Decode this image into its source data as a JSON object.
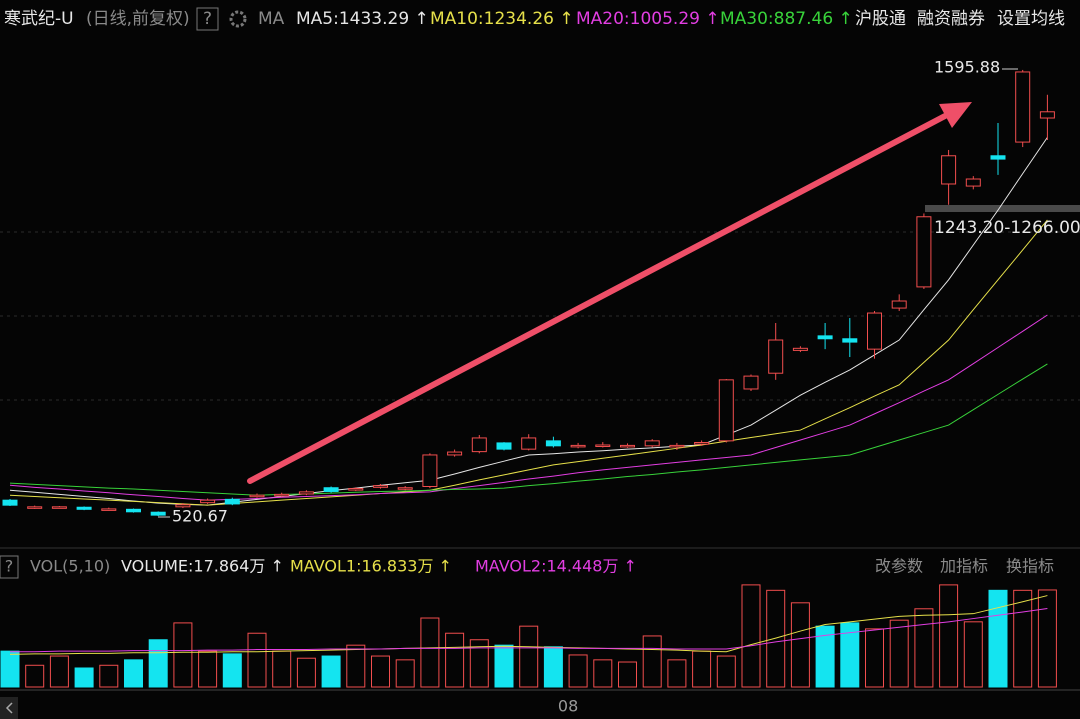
{
  "chart_data": [
    {
      "type": "candlestick",
      "title": "寒武纪-U",
      "subtitle": "(日线,前复权)",
      "help": "?",
      "indicator": "MA",
      "up_color": "#f24e4e",
      "down_color": "#14e4f0",
      "categories": [
        null,
        null,
        null,
        null,
        null,
        null,
        null,
        null,
        null,
        null,
        null,
        null,
        null,
        null,
        null,
        null,
        null,
        null,
        null,
        null,
        null,
        null,
        null,
        "08",
        null,
        null,
        null,
        null,
        null,
        null,
        null,
        null,
        null,
        null,
        null,
        null,
        null,
        null,
        null,
        null,
        null,
        null,
        null
      ],
      "open": [
        559,
        540,
        541,
        542,
        536,
        537,
        530,
        543,
        553,
        561,
        568,
        570,
        574,
        589,
        584,
        590,
        586,
        592,
        668,
        676,
        697,
        682,
        702,
        688,
        689,
        688,
        690,
        688,
        694,
        702,
        827,
        865,
        920,
        955,
        948,
        923,
        1022,
        1073,
        1321,
        1316,
        1389,
        1422,
        1480
      ],
      "high": [
        562,
        546,
        545,
        544,
        541,
        539,
        532,
        552,
        563,
        565,
        575,
        577,
        583,
        592,
        590,
        598,
        593,
        672,
        681,
        716,
        699,
        718,
        712,
        697,
        699,
        696,
        706,
        697,
        703,
        851,
        862,
        986,
        930,
        986,
        998,
        1015,
        1055,
        1250,
        1403,
        1340,
        1468,
        1595.88,
        1536
      ],
      "low": [
        545,
        538,
        539,
        535,
        534,
        529,
        520.67,
        540,
        550,
        547,
        565,
        567,
        571,
        577,
        581,
        587,
        583,
        588,
        664,
        672,
        679,
        679,
        686,
        684,
        686,
        685,
        686,
        680,
        690,
        698,
        822,
        849,
        916,
        923,
        904,
        900,
        1015,
        1068,
        1271,
        1308,
        1343,
        1410,
        1427
      ],
      "close": [
        547,
        543,
        543,
        537,
        538,
        531,
        523,
        548,
        559,
        550,
        571,
        573,
        579,
        580,
        587,
        594,
        589,
        668,
        675,
        709,
        682,
        709,
        690,
        691,
        692,
        691,
        702,
        691,
        698,
        849,
        858,
        945,
        925,
        948,
        940,
        1010,
        1039,
        1242,
        1389,
        1333,
        1381,
        1591,
        1495
      ],
      "series": [
        {
          "name": "MA5",
          "label": "MA5:1433.29 ↑",
          "color": "#e6e6e6",
          "values": [
            583,
            578,
            573,
            568,
            563,
            557,
            552,
            549,
            547,
            554,
            561,
            568,
            575,
            582,
            588,
            595,
            601,
            607,
            622,
            638,
            653,
            668,
            671,
            675,
            678,
            682,
            685,
            689,
            692,
            716,
            740,
            776,
            812,
            843,
            873,
            909,
            945,
            1018,
            1090,
            1174,
            1258,
            1346,
            1433.29
          ]
        },
        {
          "name": "MA10",
          "label": "MA10:1234.26 ↑",
          "color": "#e6e04a",
          "values": [
            571,
            568,
            565,
            562,
            559,
            556,
            553,
            550,
            547,
            551,
            555,
            559,
            563,
            567,
            571,
            575,
            579,
            583,
            595,
            608,
            620,
            632,
            644,
            652,
            660,
            668,
            676,
            684,
            692,
            701,
            710,
            719,
            728,
            755,
            782,
            810,
            837,
            891,
            945,
            1018,
            1090,
            1162,
            1234.26
          ]
        },
        {
          "name": "MA20",
          "label": "MA20:1005.29 ↑",
          "color": "#e23ee2",
          "values": [
            595,
            590,
            586,
            581,
            577,
            572,
            568,
            563,
            559,
            561,
            563,
            566,
            568,
            570,
            572,
            575,
            577,
            579,
            587,
            594,
            602,
            610,
            617,
            625,
            632,
            638,
            644,
            650,
            656,
            662,
            668,
            686,
            704,
            722,
            740,
            767,
            794,
            822,
            849,
            888,
            927,
            966,
            1005.29
          ]
        },
        {
          "name": "MA30",
          "label": "MA30:887.46 ↑",
          "color": "#38d23a",
          "values": [
            600,
            597,
            594,
            591,
            588,
            586,
            583,
            580,
            577,
            574,
            571,
            573,
            574,
            576,
            578,
            580,
            581,
            583,
            585,
            586,
            588,
            594,
            599,
            605,
            610,
            616,
            621,
            627,
            632,
            638,
            644,
            650,
            656,
            662,
            668,
            686,
            704,
            722,
            740,
            777,
            814,
            851,
            887.46
          ]
        }
      ],
      "high_label": 1595.88,
      "low_label": 520.67,
      "price_band": "1243.20-1266.00",
      "ylim": [
        451,
        1668
      ],
      "toolbar": [
        "沪股通",
        "融资融券",
        "设置均线"
      ]
    },
    {
      "type": "bar",
      "title": "VOL(5,10)",
      "help": "?",
      "volume_label": "VOLUME:17.864万 ↑",
      "values": [
        6.6,
        4.0,
        5.7,
        3.5,
        4.0,
        5.0,
        8.7,
        11.8,
        6.6,
        6.1,
        9.9,
        6.6,
        5.3,
        5.7,
        7.7,
        5.7,
        5.0,
        12.7,
        9.9,
        8.7,
        7.7,
        11.2,
        7.4,
        5.9,
        5.0,
        4.6,
        9.4,
        5.0,
        6.6,
        5.7,
        18.8,
        17.8,
        15.5,
        11.2,
        11.8,
        10.7,
        12.3,
        14.4,
        18.8,
        12.0,
        17.8,
        17.8,
        17.864
      ],
      "series": [
        {
          "name": "MAVOL1",
          "label": "MAVOL1:16.833万 ↑",
          "color": "#e6e04a",
          "values": [
            6.0,
            6.1,
            6.1,
            6.2,
            6.2,
            6.3,
            6.3,
            6.4,
            6.4,
            6.5,
            6.5,
            6.6,
            6.7,
            6.8,
            6.9,
            7.0,
            7.1,
            7.2,
            7.3,
            7.4,
            7.5,
            7.4,
            7.3,
            7.2,
            7.1,
            7.0,
            6.9,
            6.8,
            6.6,
            6.5,
            7.8,
            9.0,
            10.3,
            11.5,
            12.0,
            12.5,
            13.0,
            13.2,
            13.3,
            13.5,
            14.6,
            15.7,
            16.833
          ]
        },
        {
          "name": "MAVOL2",
          "label": "MAVOL2:14.448万 ↑",
          "color": "#e23ee2",
          "values": [
            6.5,
            6.5,
            6.6,
            6.6,
            6.6,
            6.7,
            6.7,
            6.7,
            6.8,
            6.8,
            6.9,
            6.9,
            6.9,
            7.0,
            7.0,
            7.0,
            7.1,
            7.1,
            7.1,
            7.2,
            7.2,
            7.2,
            7.2,
            7.1,
            7.1,
            7.1,
            7.1,
            7.0,
            7.0,
            7.0,
            7.6,
            8.3,
            8.9,
            9.5,
            10.0,
            10.5,
            11.0,
            11.5,
            12.0,
            12.6,
            13.2,
            13.8,
            14.448
          ]
        }
      ],
      "ylim": [
        0,
        19.7
      ],
      "buttons": [
        "改参数",
        "加指标",
        "换指标"
      ]
    }
  ]
}
